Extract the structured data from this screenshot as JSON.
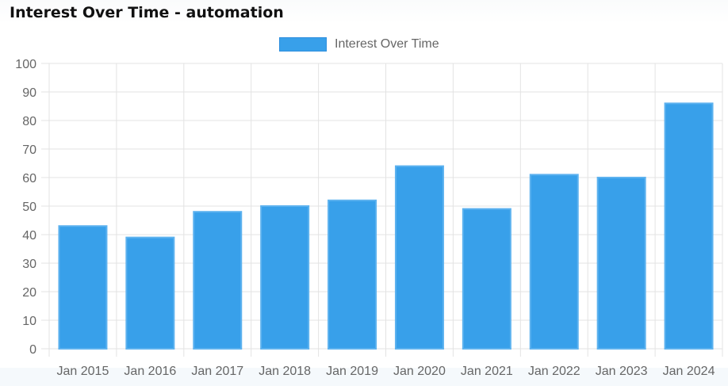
{
  "title": "Interest Over Time - automation",
  "legend": {
    "label": "Interest Over Time",
    "color": "#38a0ea"
  },
  "colors": {
    "bar_fill": "#38a0ea",
    "bar_border": "#5db2ef",
    "grid": "#e3e3e3",
    "axis_text": "#666666"
  },
  "chart_data": {
    "type": "bar",
    "title": "Interest Over Time - automation",
    "categories": [
      "Jan 2015",
      "Jan 2016",
      "Jan 2017",
      "Jan 2018",
      "Jan 2019",
      "Jan 2020",
      "Jan 2021",
      "Jan 2022",
      "Jan 2023",
      "Jan 2024"
    ],
    "series": [
      {
        "name": "Interest Over Time",
        "values": [
          43,
          39,
          48,
          50,
          52,
          64,
          49,
          61,
          60,
          86
        ]
      }
    ],
    "yticks": [
      0,
      10,
      20,
      30,
      40,
      50,
      60,
      70,
      80,
      90,
      100
    ],
    "ylim": [
      0,
      100
    ],
    "xlabel": "",
    "ylabel": "",
    "grid": true,
    "legend_position": "top-center"
  }
}
